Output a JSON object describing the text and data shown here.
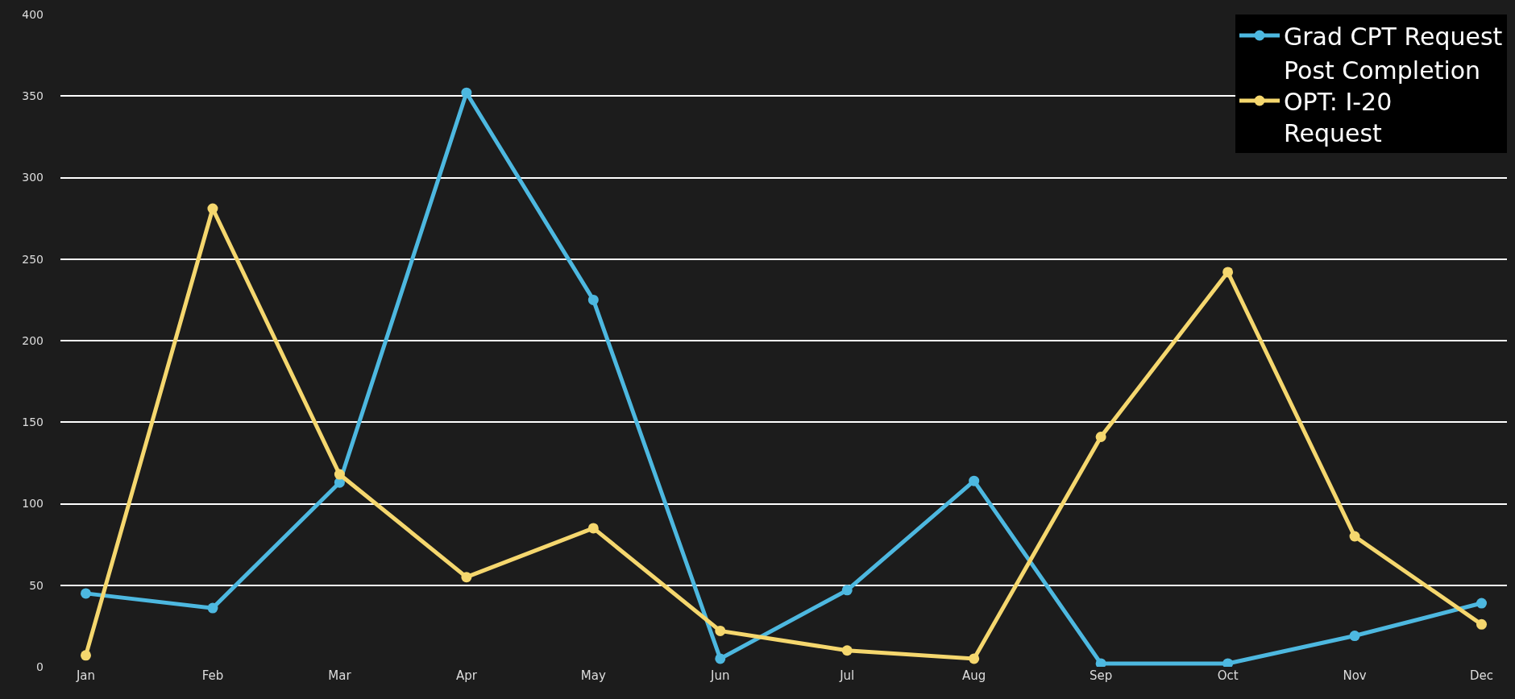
{
  "chart_data": {
    "type": "line",
    "categories": [
      "Jan",
      "Feb",
      "Mar",
      "Apr",
      "May",
      "Jun",
      "Jul",
      "Aug",
      "Sep",
      "Oct",
      "Nov",
      "Dec"
    ],
    "series": [
      {
        "name": "Grad CPT Request",
        "color": "#4db8e0",
        "values": [
          45,
          36,
          113,
          352,
          225,
          5,
          47,
          114,
          2,
          2,
          19,
          39
        ]
      },
      {
        "name": "Post Completion OPT: I-20 Request",
        "color": "#f5d76e",
        "values": [
          7,
          281,
          118,
          55,
          85,
          22,
          10,
          5,
          141,
          242,
          80,
          26
        ]
      }
    ],
    "ylim": [
      0,
      400
    ],
    "yticks": [
      0,
      50,
      100,
      150,
      200,
      250,
      300,
      350,
      400
    ],
    "grid": "y",
    "legend": "top right",
    "marker": "circle",
    "line_style": "solid"
  }
}
